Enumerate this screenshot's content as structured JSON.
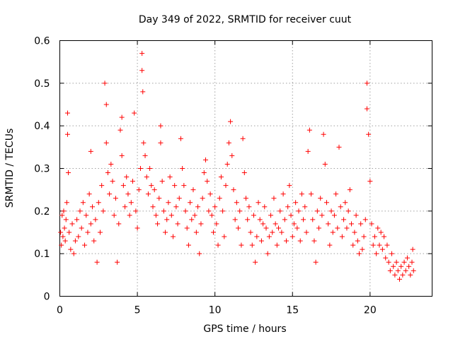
{
  "chart_data": {
    "type": "scatter",
    "title": "Day 349 of 2022, SRMTID for receiver cuut",
    "xlabel": "GPS time / hours",
    "ylabel": "SRMTID / TECUs",
    "xlim": [
      0,
      24
    ],
    "ylim": [
      0,
      0.6
    ],
    "xticks": [
      0,
      5,
      10,
      15,
      20
    ],
    "yticks": [
      0,
      0.1,
      0.2,
      0.3,
      0.4,
      0.5,
      0.6
    ],
    "xtick_labels": [
      "0",
      "5",
      "10",
      "15",
      "20"
    ],
    "ytick_labels": [
      "0",
      "0.1",
      "0.2",
      "0.3",
      "0.4",
      "0.5",
      "0.6"
    ],
    "grid": true,
    "marker": "plus",
    "color": "#ff0000",
    "series": [
      {
        "name": "SRMTID",
        "points": [
          [
            0.05,
            0.15
          ],
          [
            0.1,
            0.12
          ],
          [
            0.15,
            0.19
          ],
          [
            0.2,
            0.14
          ],
          [
            0.25,
            0.2
          ],
          [
            0.3,
            0.16
          ],
          [
            0.35,
            0.13
          ],
          [
            0.4,
            0.18
          ],
          [
            0.45,
            0.22
          ],
          [
            0.5,
            0.43
          ],
          [
            0.5,
            0.38
          ],
          [
            0.55,
            0.29
          ],
          [
            0.6,
            0.15
          ],
          [
            0.7,
            0.11
          ],
          [
            0.8,
            0.17
          ],
          [
            0.9,
            0.1
          ],
          [
            1.0,
            0.13
          ],
          [
            1.1,
            0.18
          ],
          [
            1.2,
            0.14
          ],
          [
            1.3,
            0.2
          ],
          [
            1.4,
            0.16
          ],
          [
            1.5,
            0.22
          ],
          [
            1.6,
            0.12
          ],
          [
            1.7,
            0.19
          ],
          [
            1.8,
            0.15
          ],
          [
            1.9,
            0.24
          ],
          [
            2.0,
            0.17
          ],
          [
            2.0,
            0.34
          ],
          [
            2.1,
            0.21
          ],
          [
            2.2,
            0.13
          ],
          [
            2.3,
            0.18
          ],
          [
            2.4,
            0.08
          ],
          [
            2.5,
            0.22
          ],
          [
            2.6,
            0.15
          ],
          [
            2.7,
            0.26
          ],
          [
            2.8,
            0.2
          ],
          [
            2.9,
            0.5
          ],
          [
            3.0,
            0.45
          ],
          [
            3.0,
            0.36
          ],
          [
            3.1,
            0.29
          ],
          [
            3.2,
            0.24
          ],
          [
            3.3,
            0.31
          ],
          [
            3.4,
            0.27
          ],
          [
            3.5,
            0.19
          ],
          [
            3.6,
            0.23
          ],
          [
            3.7,
            0.08
          ],
          [
            3.8,
            0.17
          ],
          [
            3.9,
            0.39
          ],
          [
            4.0,
            0.42
          ],
          [
            4.0,
            0.33
          ],
          [
            4.1,
            0.26
          ],
          [
            4.2,
            0.21
          ],
          [
            4.3,
            0.28
          ],
          [
            4.4,
            0.24
          ],
          [
            4.5,
            0.19
          ],
          [
            4.6,
            0.22
          ],
          [
            4.7,
            0.27
          ],
          [
            4.8,
            0.43
          ],
          [
            4.9,
            0.2
          ],
          [
            5.0,
            0.16
          ],
          [
            5.1,
            0.25
          ],
          [
            5.2,
            0.3
          ],
          [
            5.3,
            0.57
          ],
          [
            5.3,
            0.53
          ],
          [
            5.35,
            0.48
          ],
          [
            5.4,
            0.36
          ],
          [
            5.5,
            0.33
          ],
          [
            5.6,
            0.28
          ],
          [
            5.7,
            0.24
          ],
          [
            5.8,
            0.3
          ],
          [
            5.9,
            0.26
          ],
          [
            6.0,
            0.21
          ],
          [
            6.1,
            0.25
          ],
          [
            6.2,
            0.19
          ],
          [
            6.3,
            0.17
          ],
          [
            6.4,
            0.23
          ],
          [
            6.5,
            0.4
          ],
          [
            6.5,
            0.36
          ],
          [
            6.6,
            0.27
          ],
          [
            6.7,
            0.2
          ],
          [
            6.8,
            0.15
          ],
          [
            6.9,
            0.18
          ],
          [
            7.0,
            0.22
          ],
          [
            7.1,
            0.28
          ],
          [
            7.2,
            0.19
          ],
          [
            7.3,
            0.14
          ],
          [
            7.4,
            0.26
          ],
          [
            7.5,
            0.21
          ],
          [
            7.6,
            0.17
          ],
          [
            7.7,
            0.23
          ],
          [
            7.8,
            0.37
          ],
          [
            7.9,
            0.3
          ],
          [
            8.0,
            0.26
          ],
          [
            8.1,
            0.2
          ],
          [
            8.2,
            0.16
          ],
          [
            8.3,
            0.12
          ],
          [
            8.4,
            0.22
          ],
          [
            8.5,
            0.18
          ],
          [
            8.6,
            0.25
          ],
          [
            8.7,
            0.19
          ],
          [
            8.8,
            0.15
          ],
          [
            8.9,
            0.21
          ],
          [
            9.0,
            0.1
          ],
          [
            9.1,
            0.17
          ],
          [
            9.2,
            0.23
          ],
          [
            9.3,
            0.29
          ],
          [
            9.4,
            0.32
          ],
          [
            9.5,
            0.27
          ],
          [
            9.6,
            0.2
          ],
          [
            9.7,
            0.24
          ],
          [
            9.8,
            0.19
          ],
          [
            9.9,
            0.15
          ],
          [
            10.0,
            0.21
          ],
          [
            10.1,
            0.17
          ],
          [
            10.2,
            0.12
          ],
          [
            10.3,
            0.23
          ],
          [
            10.4,
            0.28
          ],
          [
            10.5,
            0.2
          ],
          [
            10.6,
            0.14
          ],
          [
            10.7,
            0.26
          ],
          [
            10.8,
            0.31
          ],
          [
            10.9,
            0.36
          ],
          [
            11.0,
            0.41
          ],
          [
            11.1,
            0.33
          ],
          [
            11.2,
            0.25
          ],
          [
            11.3,
            0.18
          ],
          [
            11.4,
            0.22
          ],
          [
            11.5,
            0.16
          ],
          [
            11.6,
            0.2
          ],
          [
            11.7,
            0.12
          ],
          [
            11.8,
            0.37
          ],
          [
            11.9,
            0.29
          ],
          [
            12.0,
            0.23
          ],
          [
            12.1,
            0.18
          ],
          [
            12.2,
            0.21
          ],
          [
            12.3,
            0.15
          ],
          [
            12.4,
            0.12
          ],
          [
            12.5,
            0.19
          ],
          [
            12.6,
            0.08
          ],
          [
            12.7,
            0.14
          ],
          [
            12.8,
            0.22
          ],
          [
            12.9,
            0.18
          ],
          [
            13.0,
            0.13
          ],
          [
            13.1,
            0.17
          ],
          [
            13.2,
            0.21
          ],
          [
            13.3,
            0.16
          ],
          [
            13.4,
            0.1
          ],
          [
            13.5,
            0.14
          ],
          [
            13.6,
            0.19
          ],
          [
            13.7,
            0.15
          ],
          [
            13.8,
            0.23
          ],
          [
            13.9,
            0.17
          ],
          [
            14.0,
            0.12
          ],
          [
            14.1,
            0.16
          ],
          [
            14.2,
            0.2
          ],
          [
            14.3,
            0.15
          ],
          [
            14.4,
            0.24
          ],
          [
            14.5,
            0.18
          ],
          [
            14.6,
            0.13
          ],
          [
            14.7,
            0.21
          ],
          [
            14.8,
            0.26
          ],
          [
            14.9,
            0.19
          ],
          [
            15.0,
            0.14
          ],
          [
            15.1,
            0.17
          ],
          [
            15.2,
            0.22
          ],
          [
            15.3,
            0.16
          ],
          [
            15.4,
            0.2
          ],
          [
            15.5,
            0.13
          ],
          [
            15.6,
            0.24
          ],
          [
            15.7,
            0.18
          ],
          [
            15.8,
            0.21
          ],
          [
            15.9,
            0.15
          ],
          [
            16.0,
            0.34
          ],
          [
            16.1,
            0.39
          ],
          [
            16.2,
            0.24
          ],
          [
            16.3,
            0.18
          ],
          [
            16.4,
            0.13
          ],
          [
            16.5,
            0.08
          ],
          [
            16.6,
            0.2
          ],
          [
            16.7,
            0.16
          ],
          [
            16.8,
            0.23
          ],
          [
            16.9,
            0.19
          ],
          [
            17.0,
            0.38
          ],
          [
            17.1,
            0.31
          ],
          [
            17.2,
            0.22
          ],
          [
            17.3,
            0.17
          ],
          [
            17.4,
            0.12
          ],
          [
            17.5,
            0.2
          ],
          [
            17.6,
            0.15
          ],
          [
            17.7,
            0.19
          ],
          [
            17.8,
            0.24
          ],
          [
            17.9,
            0.16
          ],
          [
            18.0,
            0.35
          ],
          [
            18.1,
            0.21
          ],
          [
            18.2,
            0.14
          ],
          [
            18.3,
            0.18
          ],
          [
            18.4,
            0.22
          ],
          [
            18.5,
            0.16
          ],
          [
            18.6,
            0.2
          ],
          [
            18.7,
            0.25
          ],
          [
            18.8,
            0.17
          ],
          [
            18.9,
            0.12
          ],
          [
            19.0,
            0.15
          ],
          [
            19.1,
            0.19
          ],
          [
            19.2,
            0.13
          ],
          [
            19.3,
            0.1
          ],
          [
            19.4,
            0.17
          ],
          [
            19.5,
            0.11
          ],
          [
            19.6,
            0.14
          ],
          [
            19.7,
            0.18
          ],
          [
            19.8,
            0.5
          ],
          [
            19.8,
            0.44
          ],
          [
            19.9,
            0.38
          ],
          [
            20.0,
            0.27
          ],
          [
            20.1,
            0.17
          ],
          [
            20.2,
            0.12
          ],
          [
            20.3,
            0.14
          ],
          [
            20.4,
            0.1
          ],
          [
            20.5,
            0.16
          ],
          [
            20.6,
            0.12
          ],
          [
            20.7,
            0.15
          ],
          [
            20.8,
            0.11
          ],
          [
            20.9,
            0.14
          ],
          [
            21.0,
            0.09
          ],
          [
            21.1,
            0.12
          ],
          [
            21.2,
            0.08
          ],
          [
            21.3,
            0.06
          ],
          [
            21.4,
            0.1
          ],
          [
            21.5,
            0.07
          ],
          [
            21.6,
            0.05
          ],
          [
            21.7,
            0.08
          ],
          [
            21.8,
            0.06
          ],
          [
            21.9,
            0.04
          ],
          [
            22.0,
            0.07
          ],
          [
            22.1,
            0.05
          ],
          [
            22.2,
            0.08
          ],
          [
            22.3,
            0.06
          ],
          [
            22.4,
            0.09
          ],
          [
            22.5,
            0.07
          ],
          [
            22.6,
            0.05
          ],
          [
            22.7,
            0.08
          ],
          [
            22.75,
            0.11
          ],
          [
            22.8,
            0.06
          ]
        ]
      }
    ]
  }
}
